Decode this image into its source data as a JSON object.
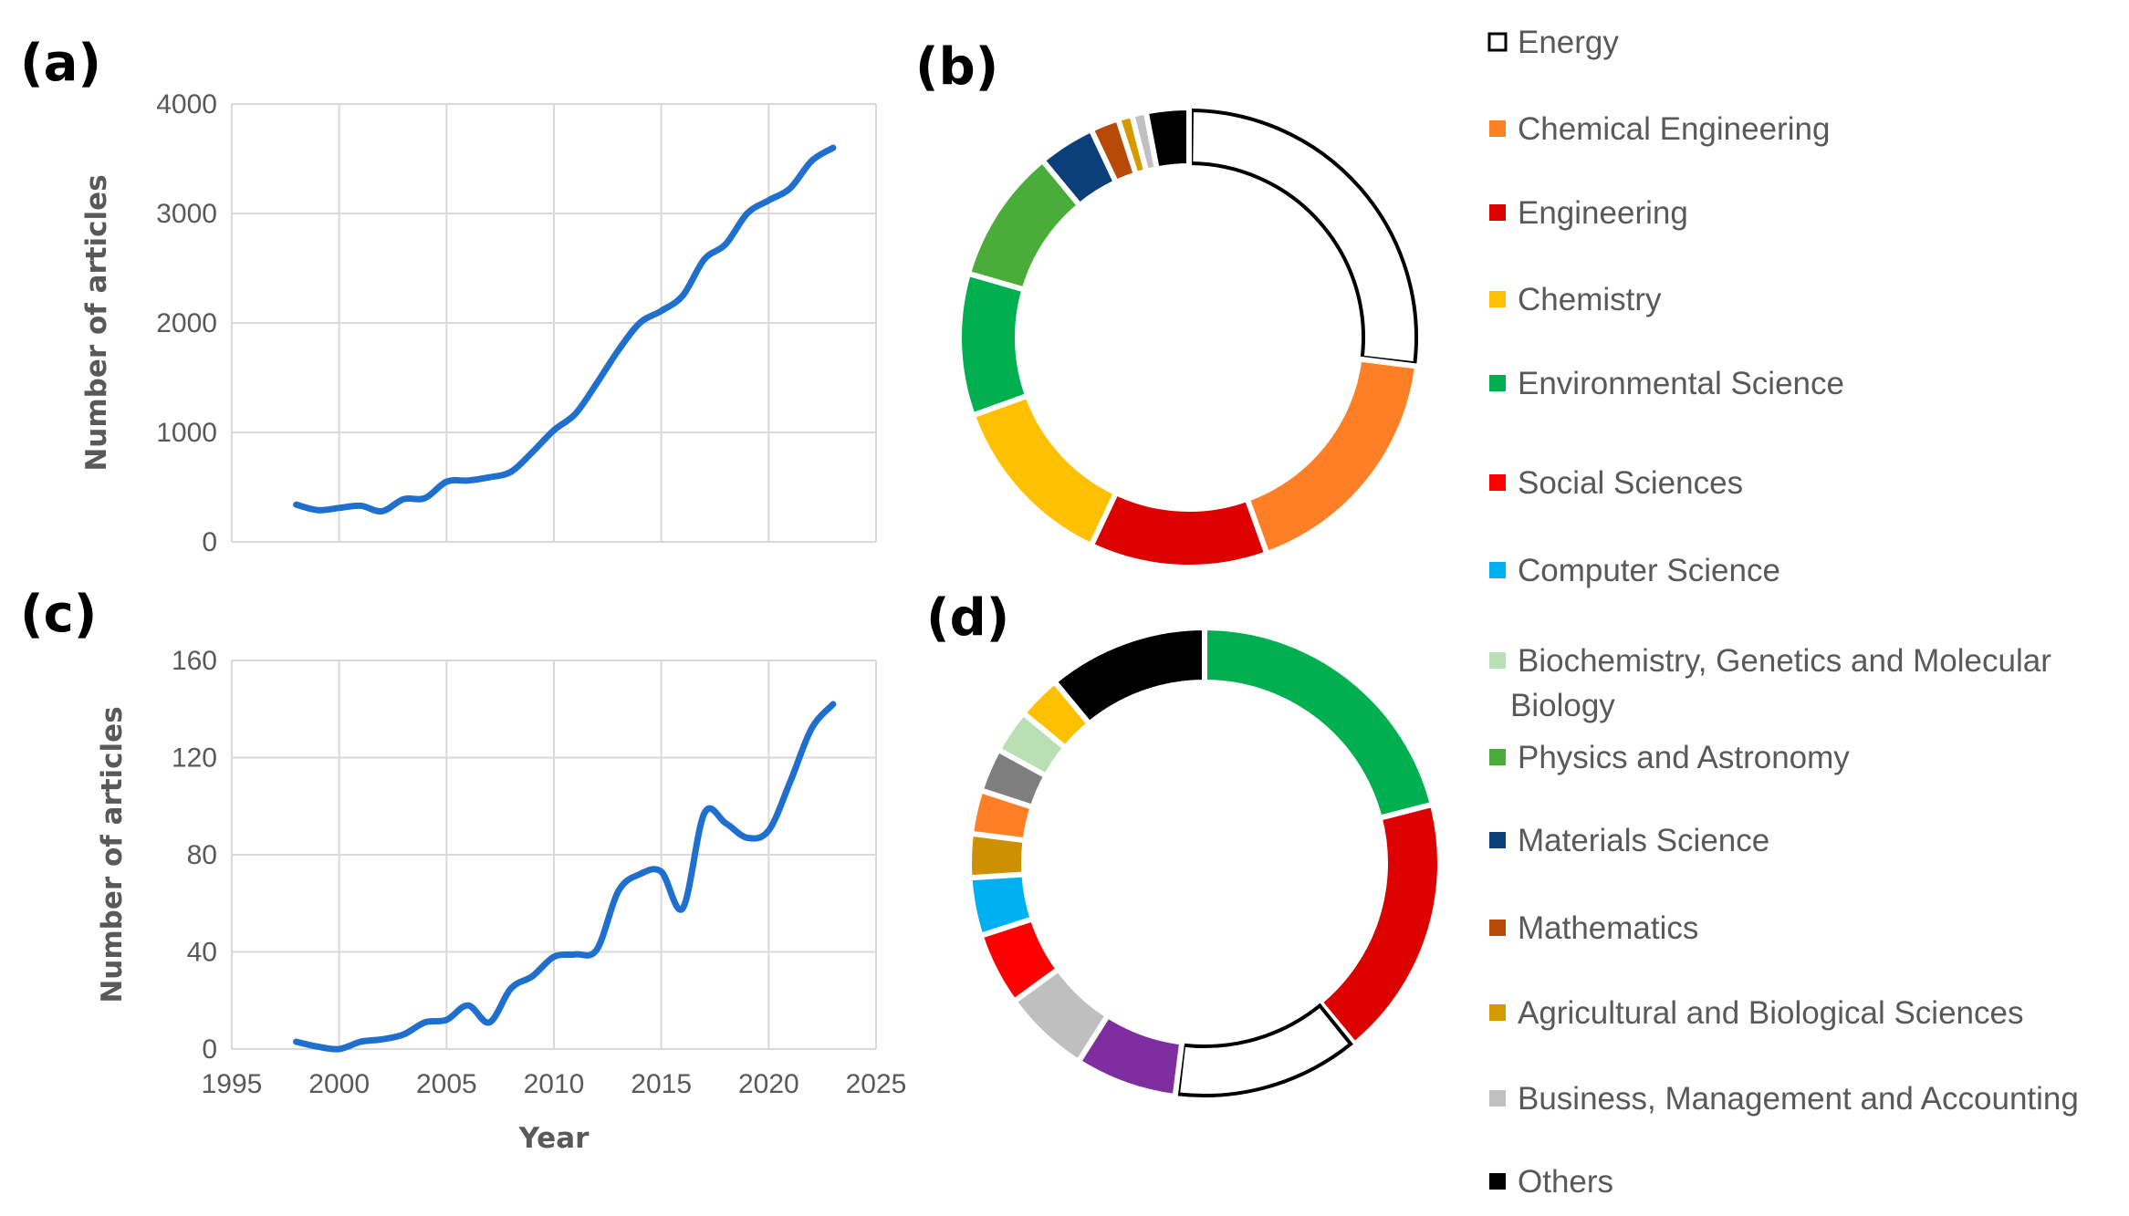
{
  "chart_data": [
    {
      "panel": "(a)",
      "type": "line",
      "xlabel": "",
      "ylabel": "Number of articles",
      "xlim": [
        1995,
        2025
      ],
      "ylim": [
        0,
        4000
      ],
      "yticks": [
        "0",
        "1000",
        "2000",
        "3000",
        "4000"
      ],
      "grid": true,
      "color": "#1f6fcf",
      "x": [
        1998,
        1999,
        2000,
        2001,
        2002,
        2003,
        2004,
        2005,
        2006,
        2007,
        2008,
        2009,
        2010,
        2011,
        2012,
        2013,
        2014,
        2015,
        2016,
        2017,
        2018,
        2019,
        2020,
        2021,
        2022,
        2023
      ],
      "y": [
        340,
        290,
        310,
        330,
        280,
        390,
        400,
        550,
        560,
        590,
        640,
        820,
        1020,
        1170,
        1450,
        1750,
        2000,
        2110,
        2250,
        2580,
        2720,
        3000,
        3120,
        3230,
        3480,
        3600
      ]
    },
    {
      "panel": "(c)",
      "type": "line",
      "xlabel": "Year",
      "ylabel": "Number of articles",
      "xlim": [
        1995,
        2025
      ],
      "ylim": [
        0,
        160
      ],
      "xticks": [
        "1995",
        "2000",
        "2005",
        "2010",
        "2015",
        "2020",
        "2025"
      ],
      "yticks": [
        "0",
        "40",
        "80",
        "120",
        "160"
      ],
      "grid": true,
      "color": "#1f6fcf",
      "x": [
        1998,
        1999,
        2000,
        2001,
        2002,
        2003,
        2004,
        2005,
        2006,
        2007,
        2008,
        2009,
        2010,
        2011,
        2012,
        2013,
        2014,
        2015,
        2016,
        2017,
        2018,
        2019,
        2020,
        2021,
        2022,
        2023
      ],
      "y": [
        3,
        1,
        0,
        3,
        4,
        6,
        11,
        12,
        18,
        11,
        25,
        30,
        38,
        39,
        41,
        65,
        72,
        73,
        58,
        97,
        93,
        87,
        90,
        110,
        132,
        142
      ]
    },
    {
      "panel": "(b)",
      "type": "pie",
      "donut": true,
      "slices": [
        {
          "name": "Energy",
          "value": 27,
          "color": "#ffffff",
          "outline": "#000000"
        },
        {
          "name": "Chemical Engineering",
          "value": 17.5,
          "color": "#ff7f27"
        },
        {
          "name": "Engineering",
          "value": 12.5,
          "color": "#dc0000"
        },
        {
          "name": "Chemistry",
          "value": 12.5,
          "color": "#ffc000"
        },
        {
          "name": "Environmental Science",
          "value": 10,
          "color": "#00b050"
        },
        {
          "name": "Physics and Astronomy",
          "value": 9.5,
          "color": "#4aad3a"
        },
        {
          "name": "Materials Science",
          "value": 4,
          "color": "#0b3f7a"
        },
        {
          "name": "Mathematics",
          "value": 2,
          "color": "#b84a08"
        },
        {
          "name": "Agricultural and Biological Sciences",
          "value": 1,
          "color": "#d49a00"
        },
        {
          "name": "Business, Management and Accounting",
          "value": 1,
          "color": "#c0c0c0"
        },
        {
          "name": "Others",
          "value": 3,
          "color": "#000000"
        }
      ]
    },
    {
      "panel": "(d)",
      "type": "pie",
      "donut": true,
      "slices": [
        {
          "name": "Environmental Science",
          "value": 21,
          "color": "#00b050"
        },
        {
          "name": "Engineering",
          "value": 18,
          "color": "#dc0000"
        },
        {
          "name": "Energy",
          "value": 13,
          "color": "#ffffff",
          "outline": "#000000"
        },
        {
          "value": 7,
          "color": "#7f2ea0"
        },
        {
          "name": "Business, Management and Accounting",
          "value": 6,
          "color": "#bfbfbf"
        },
        {
          "name": "Social Sciences",
          "value": 5,
          "color": "#ff0000"
        },
        {
          "name": "Computer Science",
          "value": 4,
          "color": "#00b0f0"
        },
        {
          "name": "Agricultural and Biological Sciences",
          "value": 3,
          "color": "#cc9000"
        },
        {
          "name": "Chemical Engineering",
          "value": 3,
          "color": "#ff7f27"
        },
        {
          "value": 3,
          "color": "#7f7f7f"
        },
        {
          "name": "Biochemistry, Genetics and Molecular Biology",
          "value": 3,
          "color": "#b9e0b4"
        },
        {
          "name": "Chemistry",
          "value": 3,
          "color": "#ffc000"
        },
        {
          "name": "Others",
          "value": 11,
          "color": "#000000"
        }
      ]
    }
  ],
  "legend": {
    "placement": "right",
    "items": [
      {
        "label": "Energy",
        "color": "#ffffff",
        "outline": "#000000"
      },
      {
        "label": "Chemical Engineering",
        "color": "#ff7f27"
      },
      {
        "label": "Engineering",
        "color": "#dc0000"
      },
      {
        "label": "Chemistry",
        "color": "#ffc000"
      },
      {
        "label": "Environmental Science",
        "color": "#00b050"
      },
      {
        "label": "Social Sciences",
        "color": "#ff0000"
      },
      {
        "label": "Computer Science",
        "color": "#00b0f0"
      },
      {
        "label": "Biochemistry, Genetics and Molecular",
        "label2": "Biology",
        "color": "#b9e0b4"
      },
      {
        "label": "Physics and Astronomy",
        "color": "#4aad3a"
      },
      {
        "label": "Materials Science",
        "color": "#0b3f7a"
      },
      {
        "label": "Mathematics",
        "color": "#b84a08"
      },
      {
        "label": "Agricultural and Biological Sciences",
        "color": "#d49a00"
      },
      {
        "label": "Business, Management and Accounting",
        "color": "#c0c0c0"
      },
      {
        "label": "Others",
        "color": "#000000"
      }
    ]
  }
}
